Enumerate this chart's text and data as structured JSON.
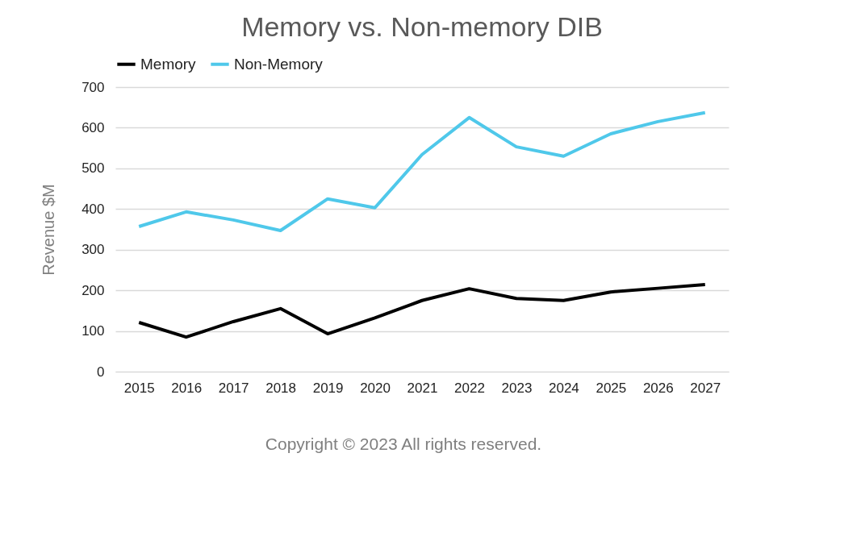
{
  "chart_data": {
    "type": "line",
    "title": "Memory vs. Non-memory DIB",
    "ylabel": "Revenue $M",
    "categories": [
      "2015",
      "2016",
      "2017",
      "2018",
      "2019",
      "2020",
      "2021",
      "2022",
      "2023",
      "2024",
      "2025",
      "2026",
      "2027"
    ],
    "series": [
      {
        "name": "Memory",
        "color": "#000000",
        "values": [
          121,
          85,
          123,
          155,
          93,
          132,
          175,
          204,
          180,
          175,
          196,
          205,
          214
        ]
      },
      {
        "name": "Non-Memory",
        "color": "#4fc8ea",
        "values": [
          357,
          393,
          373,
          347,
          425,
          403,
          534,
          625,
          553,
          530,
          585,
          615,
          637
        ]
      }
    ],
    "ylim": [
      0,
      700
    ],
    "yticks": [
      0,
      100,
      200,
      300,
      400,
      500,
      600,
      700
    ],
    "grid": "y",
    "legend": "top",
    "marker": "none",
    "line_style": "solid",
    "annotations": [
      "Copyright © 2023 All rights reserved."
    ]
  }
}
